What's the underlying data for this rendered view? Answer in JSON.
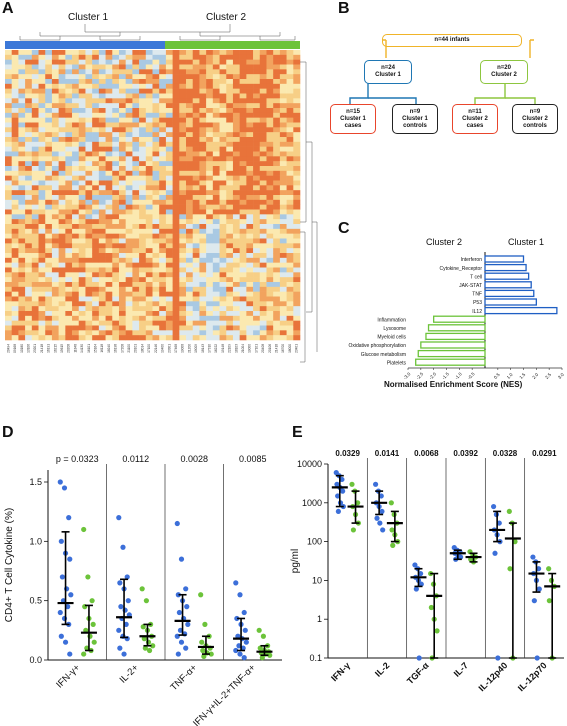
{
  "panels": {
    "a": {
      "label": "A",
      "cluster_labels": [
        "Cluster 1",
        "Cluster 2"
      ],
      "sample_ids": [
        "20494",
        "09168",
        "10180",
        "13106",
        "23201",
        "21418",
        "16191",
        "16215",
        "15615",
        "20208",
        "11848",
        "14130",
        "16101",
        "15164",
        "16118",
        "18240",
        "16198",
        "17208",
        "21100",
        "20101",
        "18014",
        "17100",
        "22146",
        "19400",
        "23301",
        "17468",
        "19008",
        "21200",
        "19009",
        "18143",
        "17310",
        "16222",
        "19148",
        "22109",
        "18103",
        "21004",
        "19000",
        "17101",
        "20408",
        "20106",
        "21418",
        "16700",
        "18000",
        "23401"
      ]
    },
    "b": {
      "label": "B",
      "root": "n=44 infants",
      "cluster1": "n=24\nCluster 1",
      "cluster2": "n=20\nCluster 2",
      "c1_cases": "n=15\nCluster 1\ncases",
      "c1_controls": "n=9\nCluster 1\ncontrols",
      "c2_cases": "n=11\nCluster 2\ncases",
      "c2_controls": "n=9\nCluster 2\ncontrols",
      "colors": {
        "root": "#f0b429",
        "c1": "#1f77b4",
        "c2": "#8dc63f",
        "cases": "#e8452c",
        "controls": "#222222"
      }
    },
    "c": {
      "label": "C",
      "header_left": "Cluster 2",
      "header_right": "Cluster 1",
      "xlabel": "Normalised Enrichment Score (NES)"
    },
    "d": {
      "label": "D",
      "ylabel": "CD4+ T Cell Cytokine (%)"
    },
    "e": {
      "label": "E",
      "ylabel": "pg/ml"
    }
  },
  "chart_data": [
    {
      "id": "C",
      "type": "bar",
      "orientation": "horizontal",
      "categories": [
        "Interferon",
        "Cytokine_Receptor",
        "T cell",
        "JAK-STAT",
        "TNF",
        "P53",
        "IL12",
        "Inflammation",
        "Lysosome",
        "Myeloid cells",
        "Oxidative phosphorylation",
        "Glucose metabolism",
        "Platelets"
      ],
      "values": [
        1.5,
        1.6,
        1.7,
        1.8,
        1.9,
        2.0,
        2.8,
        -2.0,
        -2.2,
        -2.3,
        -2.5,
        -2.6,
        -2.7
      ],
      "xticks": [
        "-3.0",
        "-2.5",
        "-2.0",
        "-1.5",
        "-1.0",
        "-0.5",
        "0.5",
        "1.0",
        "1.5",
        "2.0",
        "2.5",
        "3.0"
      ],
      "xlim": [
        -3.0,
        3.0
      ],
      "colors": {
        "positive": "#1f5fc4",
        "negative": "#6cc33a"
      }
    },
    {
      "id": "D",
      "type": "scatter",
      "categories": [
        "IFN-γ+",
        "IL-2+",
        "TNF-α+",
        "IFN-γ+IL-2+TNF-α+"
      ],
      "pvalues": [
        "p = 0.0323",
        "0.0112",
        "0.0028",
        "0.0085"
      ],
      "ylim": [
        0,
        1.5
      ],
      "yticks": [
        "0.0",
        "0.5",
        "1.0",
        "1.5"
      ],
      "series": [
        {
          "color": "#3c6fd9",
          "medians": [
            0.48,
            0.36,
            0.33,
            0.18
          ],
          "iqr": [
            [
              0.3,
              1.08
            ],
            [
              0.19,
              0.68
            ],
            [
              0.21,
              0.55
            ],
            [
              0.08,
              0.35
            ]
          ],
          "points": [
            [
              1.5,
              1.45,
              1.2,
              1.0,
              0.9,
              0.85,
              0.7,
              0.6,
              0.55,
              0.5,
              0.45,
              0.4,
              0.35,
              0.3,
              0.2,
              0.15,
              0.05
            ],
            [
              1.2,
              0.95,
              0.7,
              0.65,
              0.6,
              0.5,
              0.45,
              0.42,
              0.38,
              0.35,
              0.3,
              0.25,
              0.2,
              0.18,
              0.1,
              0.05
            ],
            [
              1.15,
              0.85,
              0.6,
              0.55,
              0.5,
              0.45,
              0.4,
              0.35,
              0.3,
              0.25,
              0.22,
              0.2,
              0.15,
              0.1,
              0.05
            ],
            [
              0.65,
              0.55,
              0.4,
              0.35,
              0.3,
              0.25,
              0.2,
              0.18,
              0.15,
              0.12,
              0.1,
              0.08,
              0.05,
              0.02
            ]
          ]
        },
        {
          "color": "#6cc33a",
          "medians": [
            0.23,
            0.2,
            0.11,
            0.07
          ],
          "iqr": [
            [
              0.08,
              0.46
            ],
            [
              0.12,
              0.3
            ],
            [
              0.05,
              0.2
            ],
            [
              0.04,
              0.12
            ]
          ],
          "points": [
            [
              1.1,
              0.7,
              0.5,
              0.45,
              0.35,
              0.3,
              0.25,
              0.2,
              0.15,
              0.1,
              0.08,
              0.05
            ],
            [
              0.6,
              0.5,
              0.3,
              0.28,
              0.25,
              0.2,
              0.18,
              0.15,
              0.12,
              0.1,
              0.08
            ],
            [
              0.55,
              0.3,
              0.2,
              0.15,
              0.12,
              0.1,
              0.08,
              0.06,
              0.05,
              0.03
            ],
            [
              0.25,
              0.2,
              0.12,
              0.1,
              0.08,
              0.07,
              0.06,
              0.05,
              0.04,
              0.02
            ]
          ]
        }
      ]
    },
    {
      "id": "E",
      "type": "scatter",
      "scale": "log",
      "categories": [
        "IFN-γ",
        "IL-2",
        "TGF-α",
        "IL-7",
        "IL-12p40",
        "IL-12p70"
      ],
      "pvalues": [
        "0.0329",
        "0.0141",
        "0.0068",
        "0.0392",
        "0.0328",
        "0.0291"
      ],
      "ylim": [
        0.1,
        10000
      ],
      "yticks": [
        "0.1",
        "1",
        "10",
        "100",
        "1000",
        "10000"
      ],
      "series": [
        {
          "color": "#3c6fd9",
          "medians": [
            2500,
            1000,
            12,
            50,
            200,
            15
          ],
          "iqr": [
            [
              800,
              5000
            ],
            [
              500,
              2000
            ],
            [
              7,
              20
            ],
            [
              35,
              60
            ],
            [
              100,
              600
            ],
            [
              5,
              30
            ]
          ],
          "points": [
            [
              6000,
              5000,
              4000,
              3000,
              2500,
              2000,
              1500,
              1000,
              800,
              600
            ],
            [
              3000,
              2000,
              1500,
              1000,
              800,
              600,
              400,
              300,
              200
            ],
            [
              25,
              20,
              15,
              12,
              10,
              8,
              6,
              0.1
            ],
            [
              70,
              60,
              55,
              50,
              45,
              40,
              35
            ],
            [
              800,
              500,
              300,
              200,
              150,
              100,
              50,
              0.1
            ],
            [
              40,
              30,
              20,
              15,
              10,
              6,
              3,
              0.1
            ]
          ]
        },
        {
          "color": "#6cc33a",
          "medians": [
            800,
            300,
            4,
            40,
            120,
            7
          ],
          "iqr": [
            [
              300,
              2000
            ],
            [
              100,
              600
            ],
            [
              0.1,
              15
            ],
            [
              30,
              50
            ],
            [
              0.1,
              300
            ],
            [
              0.1,
              15
            ]
          ],
          "points": [
            [
              3000,
              2000,
              1000,
              800,
              500,
              300,
              200
            ],
            [
              1000,
              500,
              300,
              200,
              150,
              100,
              80
            ],
            [
              15,
              8,
              4,
              2,
              1,
              0.5,
              0.1
            ],
            [
              55,
              45,
              40,
              35,
              30
            ],
            [
              600,
              300,
              100,
              20,
              0.1
            ],
            [
              20,
              10,
              7,
              3,
              0.1
            ]
          ]
        }
      ]
    }
  ]
}
